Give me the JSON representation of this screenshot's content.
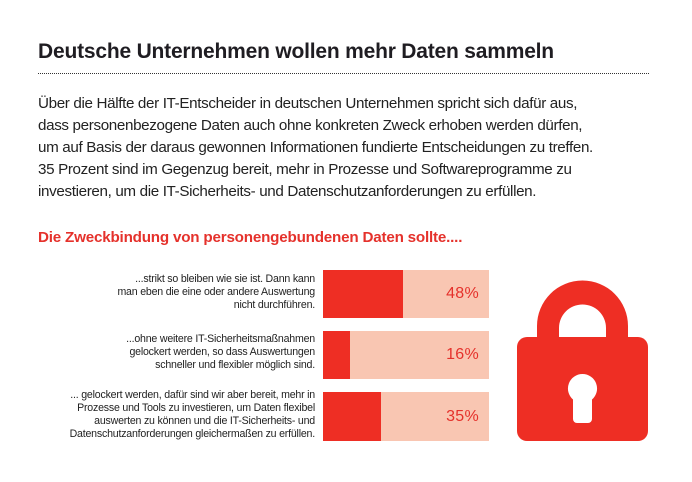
{
  "header": {
    "title": "Deutsche Unternehmen wollen mehr Daten sammeln"
  },
  "intro": {
    "lines": [
      "Über die Hälfte der IT-Entscheider in deutschen Unternehmen spricht sich dafür aus,",
      "dass personenbezogene Daten auch ohne konkreten Zweck erhoben werden dürfen,",
      "um auf Basis der daraus gewonnen Informationen fundierte Entscheidungen zu treffen.",
      "35 Prozent sind im Gegenzug bereit, mehr in Prozesse und Softwareprogramme zu",
      "investieren, um die IT-Sicherheits- und Datenschutzanforderungen zu erfüllen."
    ]
  },
  "chart_data": {
    "type": "bar",
    "orientation": "horizontal",
    "title": "Die Zweckbindung von personengebundenen Daten sollte....",
    "xlabel": "",
    "ylabel": "",
    "xlim": [
      0,
      100
    ],
    "grid": false,
    "categories": [
      [
        "...strikt so bleiben wie sie ist. Dann kann",
        "man eben die eine oder andere Auswertung",
        "nicht durchführen."
      ],
      [
        "...ohne weitere IT-Sicherheitsmaßnahmen",
        "gelockert werden, so dass Auswertungen",
        "schneller und flexibler möglich sind."
      ],
      [
        "... gelockert werden, dafür sind wir aber bereit, mehr in",
        "Prozesse und Tools zu investieren, um Daten flexibel",
        "auswerten zu können und die IT-Sicherheits- und",
        "Datenschutzanforderungen gleichermaßen zu erfüllen."
      ]
    ],
    "values": [
      48,
      16,
      35
    ],
    "value_labels": [
      "48%",
      "16%",
      "35%"
    ],
    "unit": "%",
    "colors": {
      "fill": "#ee2e24",
      "track": "#f9c6b2",
      "value_text": "#e5312b"
    }
  },
  "icon": {
    "name": "lock-icon",
    "color": "#ee2e24"
  }
}
